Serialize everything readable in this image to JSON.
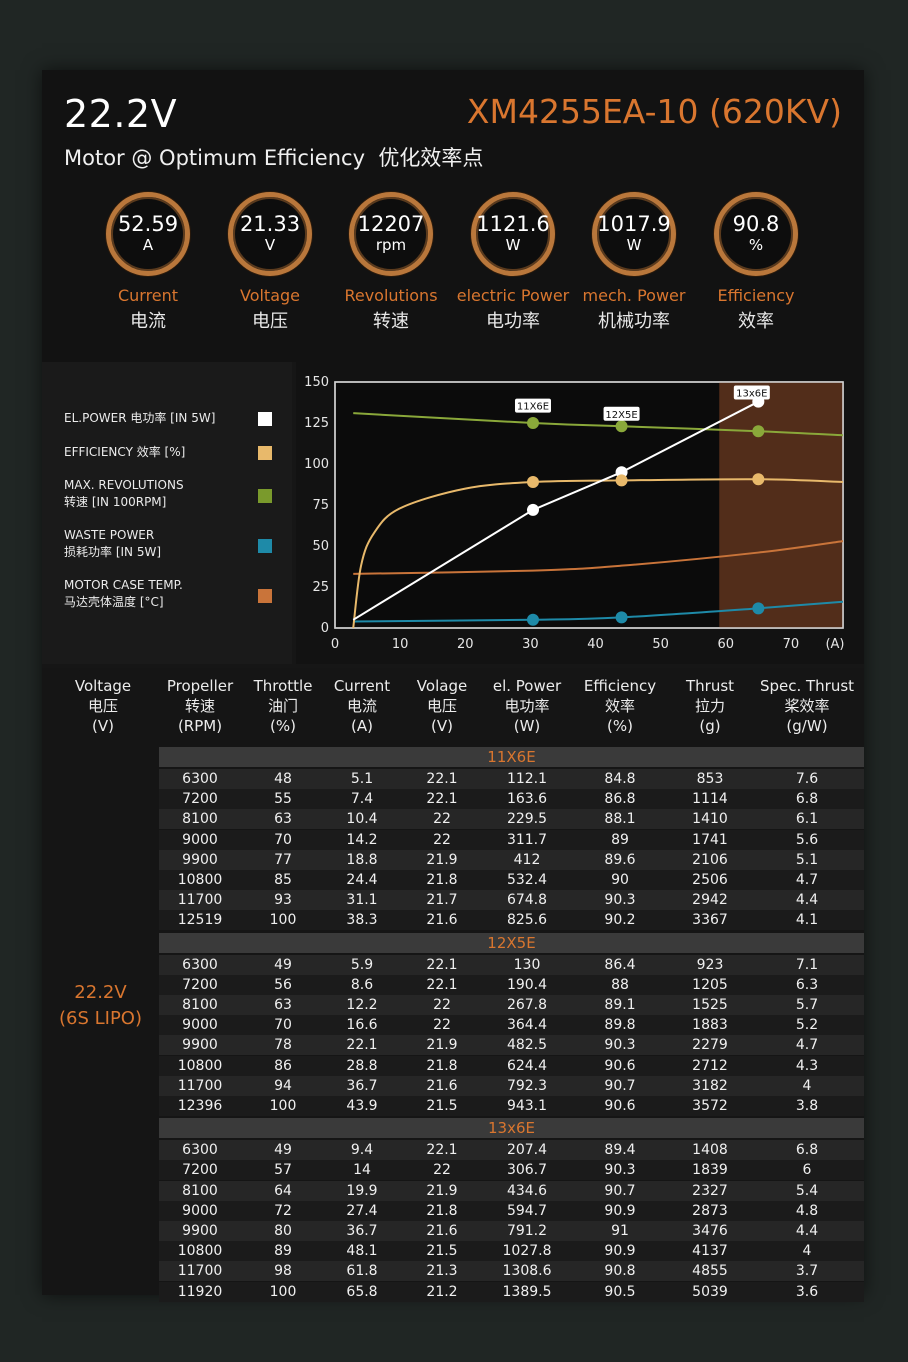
{
  "header": {
    "voltage": "22.2V",
    "model": "XM4255EA-10 (620KV)",
    "subtitle": "Motor @ Optimum Efficiency  优化效率点"
  },
  "gauges": [
    {
      "value": "52.59",
      "unit": "A",
      "en": "Current",
      "cn": "电流"
    },
    {
      "value": "21.33",
      "unit": "V",
      "en": "Voltage",
      "cn": "电压"
    },
    {
      "value": "12207",
      "unit": "rpm",
      "en": "Revolutions",
      "cn": "转速"
    },
    {
      "value": "1121.6",
      "unit": "W",
      "en": "electric Power",
      "cn": "电功率"
    },
    {
      "value": "1017.9",
      "unit": "W",
      "en": "mech. Power",
      "cn": "机械功率"
    },
    {
      "value": "90.8",
      "unit": "%",
      "en": "Efficiency",
      "cn": "效率"
    }
  ],
  "legend": [
    {
      "line1": "EL.POWER 电功率 [IN 5W]",
      "line2": "",
      "color": "#ffffff"
    },
    {
      "line1": "EFFICIENCY 效率 [%]",
      "line2": "",
      "color": "#e8b96b"
    },
    {
      "line1": "MAX. REVOLUTIONS",
      "line2": "转速 [IN 100RPM]",
      "color": "#7a9a2c"
    },
    {
      "line1": "WASTE POWER",
      "line2": "损耗功率 [IN 5W]",
      "color": "#1e8aa8"
    },
    {
      "line1": "MOTOR CASE TEMP.",
      "line2": "马达壳体温度 [°C]",
      "color": "#c9743a"
    }
  ],
  "chart_data": {
    "type": "line",
    "xlim": [
      0,
      78
    ],
    "ylim": [
      0,
      150
    ],
    "xticks": [
      0,
      10,
      20,
      30,
      40,
      50,
      60,
      70
    ],
    "x_unit_label": "(A)",
    "yticks": [
      0,
      25,
      50,
      75,
      100,
      125,
      150
    ],
    "shaded_region": {
      "x_from": 59,
      "x_to": 78,
      "color": "#6b3a20"
    },
    "series": [
      {
        "name": "EL.POWER 电功率 [IN 5W]",
        "color": "#ffffff",
        "x": [
          2.8,
          30.4,
          44,
          65
        ],
        "y": [
          5,
          72,
          95,
          138
        ]
      },
      {
        "name": "EFFICIENCY 效率 [%]",
        "color": "#e8b96b",
        "x": [
          2.8,
          4,
          6,
          10,
          20,
          30.4,
          44,
          65,
          78
        ],
        "y": [
          0,
          38,
          58,
          73,
          85,
          89,
          90,
          90.7,
          89
        ]
      },
      {
        "name": "MAX. REVOLUTIONS 转速 [IN 100RPM]",
        "color": "#8aa83a",
        "x": [
          2.8,
          30.4,
          44,
          65,
          78
        ],
        "y": [
          131,
          125,
          123,
          120,
          117.5
        ]
      },
      {
        "name": "WASTE POWER 损耗功率 [IN 5W]",
        "color": "#1e8aa8",
        "x": [
          2.8,
          30.4,
          44,
          65,
          78
        ],
        "y": [
          4,
          5,
          6.5,
          12,
          16
        ]
      },
      {
        "name": "MOTOR CASE TEMP. 马达壳体温度 [°C]",
        "color": "#c9743a",
        "x": [
          2.8,
          30.4,
          44,
          65,
          78
        ],
        "y": [
          33,
          35,
          38,
          46,
          53
        ]
      }
    ],
    "markers": [
      {
        "series": 0,
        "x": 30.4,
        "y": 72
      },
      {
        "series": 0,
        "x": 44,
        "y": 95
      },
      {
        "series": 0,
        "x": 65,
        "y": 138
      },
      {
        "series": 1,
        "x": 30.4,
        "y": 89
      },
      {
        "series": 1,
        "x": 44,
        "y": 90
      },
      {
        "series": 1,
        "x": 65,
        "y": 90.7
      },
      {
        "series": 2,
        "x": 30.4,
        "y": 125
      },
      {
        "series": 2,
        "x": 44,
        "y": 123
      },
      {
        "series": 2,
        "x": 65,
        "y": 120
      },
      {
        "series": 3,
        "x": 30.4,
        "y": 5
      },
      {
        "series": 3,
        "x": 44,
        "y": 6.5
      },
      {
        "series": 3,
        "x": 65,
        "y": 12
      }
    ],
    "annotations": [
      {
        "text": "11X6E",
        "x": 30.4,
        "y": 135
      },
      {
        "text": "12X5E",
        "x": 44,
        "y": 130
      },
      {
        "text": "13x6E",
        "x": 64,
        "y": 143
      }
    ]
  },
  "table": {
    "headers": [
      [
        "Voltage",
        "电压",
        "(V)"
      ],
      [
        "Propeller",
        "转速",
        "(RPM)"
      ],
      [
        "Throttle",
        "油门",
        "(%)"
      ],
      [
        "Current",
        "电流",
        "(A)"
      ],
      [
        "Volage",
        "电压",
        "(V)"
      ],
      [
        "el. Power",
        "电功率",
        "(W)"
      ],
      [
        "Efficiency",
        "效率",
        "(%)"
      ],
      [
        "Thrust",
        "拉力",
        "(g)"
      ],
      [
        "Spec. Thrust",
        "桨效率",
        "(g/W)"
      ]
    ],
    "side_label": [
      "22.2V",
      "(6S LIPO)"
    ],
    "groups": [
      {
        "name": "11X6E",
        "rows": [
          [
            "6300",
            "48",
            "5.1",
            "22.1",
            "112.1",
            "84.8",
            "853",
            "7.6"
          ],
          [
            "7200",
            "55",
            "7.4",
            "22.1",
            "163.6",
            "86.8",
            "1114",
            "6.8"
          ],
          [
            "8100",
            "63",
            "10.4",
            "22",
            "229.5",
            "88.1",
            "1410",
            "6.1"
          ],
          [
            "9000",
            "70",
            "14.2",
            "22",
            "311.7",
            "89",
            "1741",
            "5.6"
          ],
          [
            "9900",
            "77",
            "18.8",
            "21.9",
            "412",
            "89.6",
            "2106",
            "5.1"
          ],
          [
            "10800",
            "85",
            "24.4",
            "21.8",
            "532.4",
            "90",
            "2506",
            "4.7"
          ],
          [
            "11700",
            "93",
            "31.1",
            "21.7",
            "674.8",
            "90.3",
            "2942",
            "4.4"
          ],
          [
            "12519",
            "100",
            "38.3",
            "21.6",
            "825.6",
            "90.2",
            "3367",
            "4.1"
          ]
        ]
      },
      {
        "name": "12X5E",
        "rows": [
          [
            "6300",
            "49",
            "5.9",
            "22.1",
            "130",
            "86.4",
            "923",
            "7.1"
          ],
          [
            "7200",
            "56",
            "8.6",
            "22.1",
            "190.4",
            "88",
            "1205",
            "6.3"
          ],
          [
            "8100",
            "63",
            "12.2",
            "22",
            "267.8",
            "89.1",
            "1525",
            "5.7"
          ],
          [
            "9000",
            "70",
            "16.6",
            "22",
            "364.4",
            "89.8",
            "1883",
            "5.2"
          ],
          [
            "9900",
            "78",
            "22.1",
            "21.9",
            "482.5",
            "90.3",
            "2279",
            "4.7"
          ],
          [
            "10800",
            "86",
            "28.8",
            "21.8",
            "624.4",
            "90.6",
            "2712",
            "4.3"
          ],
          [
            "11700",
            "94",
            "36.7",
            "21.6",
            "792.3",
            "90.7",
            "3182",
            "4"
          ],
          [
            "12396",
            "100",
            "43.9",
            "21.5",
            "943.1",
            "90.6",
            "3572",
            "3.8"
          ]
        ]
      },
      {
        "name": "13x6E",
        "rows": [
          [
            "6300",
            "49",
            "9.4",
            "22.1",
            "207.4",
            "89.4",
            "1408",
            "6.8"
          ],
          [
            "7200",
            "57",
            "14",
            "22",
            "306.7",
            "90.3",
            "1839",
            "6"
          ],
          [
            "8100",
            "64",
            "19.9",
            "21.9",
            "434.6",
            "90.7",
            "2327",
            "5.4"
          ],
          [
            "9000",
            "72",
            "27.4",
            "21.8",
            "594.7",
            "90.9",
            "2873",
            "4.8"
          ],
          [
            "9900",
            "80",
            "36.7",
            "21.6",
            "791.2",
            "91",
            "3476",
            "4.4"
          ],
          [
            "10800",
            "89",
            "48.1",
            "21.5",
            "1027.8",
            "90.9",
            "4137",
            "4"
          ],
          [
            "11700",
            "98",
            "61.8",
            "21.3",
            "1308.6",
            "90.8",
            "4855",
            "3.7"
          ],
          [
            "11920",
            "100",
            "65.8",
            "21.2",
            "1389.5",
            "90.5",
            "5039",
            "3.6"
          ]
        ]
      }
    ]
  }
}
